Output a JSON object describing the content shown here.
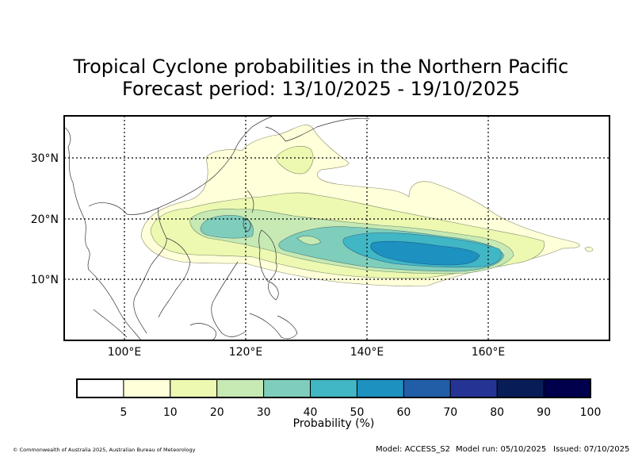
{
  "title": {
    "line1": "Tropical Cyclone probabilities in the Northern Pacific",
    "line2": "Forecast period: 13/10/2025 - 19/10/2025"
  },
  "map": {
    "region": "Northern Pacific",
    "lon_range": [
      90,
      180
    ],
    "lat_range": [
      0,
      37
    ],
    "lon_ticks": [
      "100°E",
      "120°E",
      "140°E",
      "160°E"
    ],
    "lat_ticks": [
      "10°N",
      "20°N",
      "30°N"
    ],
    "gridlines": "dotted"
  },
  "colorbar": {
    "label": "Probability (%)",
    "ticks": [
      "5",
      "10",
      "20",
      "30",
      "40",
      "50",
      "60",
      "70",
      "80",
      "90",
      "100"
    ],
    "colors": [
      "#ffffff",
      "#ffffd9",
      "#edf8b1",
      "#c7e9b4",
      "#7fcdbb",
      "#41b6c4",
      "#1d91c0",
      "#225ea8",
      "#253494",
      "#081d58",
      "#00004d"
    ]
  },
  "footer": {
    "copyright": "© Commonwealth of Australia 2025, Australian Bureau of Meteorology",
    "model": "Model: ACCESS_S2",
    "model_run": "Model run: 05/10/2025",
    "issued": "Issued: 07/10/2025"
  }
}
